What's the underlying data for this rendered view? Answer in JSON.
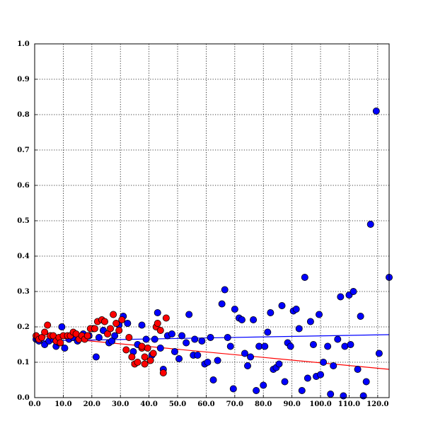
{
  "chart_data": {
    "type": "scatter",
    "title": "",
    "xlabel": "",
    "ylabel": "",
    "xlim": [
      0,
      124
    ],
    "ylim": [
      0,
      1.0
    ],
    "grid": true,
    "x_ticks": [
      0,
      10,
      20,
      30,
      40,
      50,
      60,
      70,
      80,
      90,
      100,
      110,
      120
    ],
    "x_tick_labels": [
      "0.0",
      "10.0",
      "20.0",
      "30.0",
      "40.0",
      "50.0",
      "60.0",
      "70.0",
      "80.0",
      "90.0",
      "100.0",
      "110.0",
      "120.0"
    ],
    "y_ticks": [
      0,
      0.1,
      0.2,
      0.3,
      0.4,
      0.5,
      0.6,
      0.7,
      0.8,
      0.9,
      1.0
    ],
    "y_tick_labels": [
      "0.0",
      "0.1",
      "0.2",
      "0.3",
      "0.4",
      "0.5",
      "0.6",
      "0.7",
      "0.8",
      "0.9",
      "1.0"
    ],
    "series": [
      {
        "color": "#0000ff",
        "points": [
          [
            0.5,
            0.165
          ],
          [
            1.5,
            0.16
          ],
          [
            3.5,
            0.15
          ],
          [
            5,
            0.16
          ],
          [
            6.5,
            0.165
          ],
          [
            7.5,
            0.145
          ],
          [
            8.5,
            0.155
          ],
          [
            9.5,
            0.2
          ],
          [
            10.5,
            0.14
          ],
          [
            12,
            0.165
          ],
          [
            13.5,
            0.17
          ],
          [
            15,
            0.16
          ],
          [
            17,
            0.18
          ],
          [
            19,
            0.175
          ],
          [
            20.5,
            0.195
          ],
          [
            21.5,
            0.115
          ],
          [
            22.5,
            0.17
          ],
          [
            24,
            0.19
          ],
          [
            26,
            0.155
          ],
          [
            27,
            0.16
          ],
          [
            28,
            0.175
          ],
          [
            29.5,
            0.205
          ],
          [
            31,
            0.23
          ],
          [
            32.5,
            0.21
          ],
          [
            34.5,
            0.13
          ],
          [
            36,
            0.15
          ],
          [
            37.5,
            0.205
          ],
          [
            39,
            0.165
          ],
          [
            41,
            0.12
          ],
          [
            42,
            0.165
          ],
          [
            43,
            0.24
          ],
          [
            44,
            0.14
          ],
          [
            45,
            0.08
          ],
          [
            46.5,
            0.175
          ],
          [
            48,
            0.18
          ],
          [
            49,
            0.13
          ],
          [
            50.5,
            0.11
          ],
          [
            51.5,
            0.175
          ],
          [
            53,
            0.155
          ],
          [
            54,
            0.235
          ],
          [
            55.5,
            0.12
          ],
          [
            56,
            0.165
          ],
          [
            57,
            0.12
          ],
          [
            58.5,
            0.16
          ],
          [
            59.5,
            0.095
          ],
          [
            60.5,
            0.1
          ],
          [
            61.5,
            0.17
          ],
          [
            62.5,
            0.05
          ],
          [
            64,
            0.105
          ],
          [
            65.5,
            0.265
          ],
          [
            66.5,
            0.305
          ],
          [
            67.5,
            0.17
          ],
          [
            68.5,
            0.145
          ],
          [
            69.5,
            0.025
          ],
          [
            70,
            0.25
          ],
          [
            71.5,
            0.225
          ],
          [
            72.5,
            0.22
          ],
          [
            73.5,
            0.125
          ],
          [
            74.5,
            0.09
          ],
          [
            75.5,
            0.115
          ],
          [
            76.5,
            0.22
          ],
          [
            77.5,
            0.02
          ],
          [
            78.5,
            0.145
          ],
          [
            80,
            0.035
          ],
          [
            80.5,
            0.145
          ],
          [
            81.5,
            0.185
          ],
          [
            82.5,
            0.24
          ],
          [
            83.5,
            0.08
          ],
          [
            84.5,
            0.085
          ],
          [
            85.5,
            0.095
          ],
          [
            86.5,
            0.26
          ],
          [
            87.5,
            0.045
          ],
          [
            88.5,
            0.155
          ],
          [
            89.5,
            0.145
          ],
          [
            90.5,
            0.245
          ],
          [
            91.5,
            0.25
          ],
          [
            92.5,
            0.195
          ],
          [
            93.5,
            0.02
          ],
          [
            94.5,
            0.34
          ],
          [
            95.5,
            0.055
          ],
          [
            96.5,
            0.215
          ],
          [
            97.5,
            0.15
          ],
          [
            98.5,
            0.06
          ],
          [
            99.5,
            0.235
          ],
          [
            100,
            0.065
          ],
          [
            101,
            0.1
          ],
          [
            102.5,
            0.145
          ],
          [
            103.5,
            0.01
          ],
          [
            104.5,
            0.09
          ],
          [
            106,
            0.165
          ],
          [
            107,
            0.285
          ],
          [
            108,
            0.005
          ],
          [
            108.5,
            0.145
          ],
          [
            110,
            0.29
          ],
          [
            110.5,
            0.15
          ],
          [
            111.5,
            0.3
          ],
          [
            113,
            0.08
          ],
          [
            114,
            0.23
          ],
          [
            115,
            0.005
          ],
          [
            116,
            0.045
          ],
          [
            117.5,
            0.49
          ],
          [
            119.5,
            0.81
          ],
          [
            120.5,
            0.125
          ],
          [
            124,
            0.34
          ]
        ],
        "trend": {
          "x": [
            0,
            124
          ],
          "y": [
            0.16,
            0.178
          ]
        }
      },
      {
        "color": "#ff0000",
        "points": [
          [
            0.5,
            0.175
          ],
          [
            1.5,
            0.165
          ],
          [
            2.5,
            0.17
          ],
          [
            3.5,
            0.185
          ],
          [
            4.5,
            0.205
          ],
          [
            5.5,
            0.175
          ],
          [
            6.5,
            0.175
          ],
          [
            7.5,
            0.16
          ],
          [
            8.5,
            0.17
          ],
          [
            9,
            0.155
          ],
          [
            10,
            0.175
          ],
          [
            11.5,
            0.175
          ],
          [
            12.5,
            0.175
          ],
          [
            13.5,
            0.185
          ],
          [
            14.5,
            0.18
          ],
          [
            15.5,
            0.165
          ],
          [
            16.5,
            0.175
          ],
          [
            17.5,
            0.165
          ],
          [
            18.5,
            0.175
          ],
          [
            19.5,
            0.195
          ],
          [
            21,
            0.195
          ],
          [
            22,
            0.215
          ],
          [
            23.5,
            0.22
          ],
          [
            24.5,
            0.215
          ],
          [
            25.5,
            0.18
          ],
          [
            26.5,
            0.195
          ],
          [
            27.5,
            0.235
          ],
          [
            28.5,
            0.21
          ],
          [
            29.5,
            0.19
          ],
          [
            30.5,
            0.22
          ],
          [
            32,
            0.135
          ],
          [
            33,
            0.17
          ],
          [
            34,
            0.115
          ],
          [
            35,
            0.095
          ],
          [
            36,
            0.1
          ],
          [
            37.5,
            0.14
          ],
          [
            38.5,
            0.115
          ],
          [
            39.5,
            0.14
          ],
          [
            40.5,
            0.105
          ],
          [
            41.5,
            0.125
          ],
          [
            42.5,
            0.2
          ],
          [
            43,
            0.21
          ],
          [
            44,
            0.19
          ],
          [
            45,
            0.07
          ],
          [
            46,
            0.225
          ],
          [
            37.5,
            0.145
          ],
          [
            38.5,
            0.095
          ]
        ],
        "trend": {
          "x": [
            0,
            124
          ],
          "y": [
            0.175,
            0.08
          ]
        }
      }
    ]
  }
}
